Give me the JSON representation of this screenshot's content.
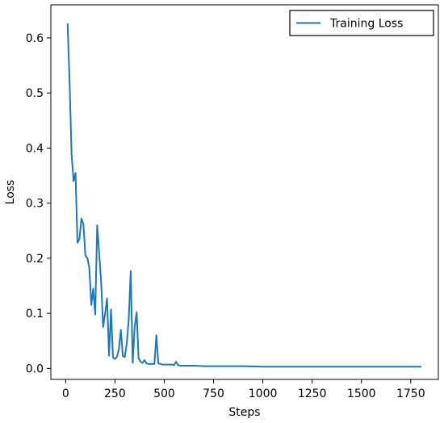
{
  "chart_data": {
    "type": "line",
    "title": "",
    "xlabel": "Steps",
    "ylabel": "Loss",
    "xlim": [
      -75,
      1890
    ],
    "ylim": [
      -0.02,
      0.66
    ],
    "xticks": [
      0,
      250,
      500,
      750,
      1000,
      1250,
      1500,
      1750
    ],
    "xtick_labels": [
      "0",
      "250",
      "500",
      "750",
      "1000",
      "1250",
      "1500",
      "1750"
    ],
    "yticks": [
      0.0,
      0.1,
      0.2,
      0.3,
      0.4,
      0.5,
      0.6
    ],
    "ytick_labels": [
      "0.0",
      "0.1",
      "0.2",
      "0.3",
      "0.4",
      "0.5",
      "0.6"
    ],
    "grid": false,
    "legend": {
      "position": "top-right"
    },
    "series": [
      {
        "name": "Training Loss",
        "color": "#1f77b4",
        "x": [
          10,
          20,
          30,
          40,
          50,
          60,
          70,
          80,
          90,
          100,
          110,
          120,
          130,
          140,
          150,
          160,
          170,
          180,
          190,
          200,
          210,
          220,
          230,
          240,
          250,
          260,
          270,
          280,
          290,
          300,
          310,
          320,
          330,
          340,
          350,
          360,
          370,
          380,
          390,
          400,
          410,
          420,
          430,
          440,
          450,
          460,
          470,
          480,
          490,
          500,
          510,
          520,
          530,
          540,
          550,
          560,
          570,
          580,
          600,
          650,
          700,
          750,
          800,
          900,
          1000,
          1100,
          1200,
          1300,
          1400,
          1500,
          1600,
          1700,
          1800
        ],
        "y": [
          0.625,
          0.52,
          0.39,
          0.34,
          0.355,
          0.228,
          0.235,
          0.272,
          0.262,
          0.205,
          0.2,
          0.183,
          0.115,
          0.145,
          0.098,
          0.26,
          0.21,
          0.157,
          0.075,
          0.1,
          0.127,
          0.023,
          0.107,
          0.02,
          0.017,
          0.021,
          0.035,
          0.07,
          0.022,
          0.021,
          0.045,
          0.09,
          0.177,
          0.01,
          0.075,
          0.102,
          0.018,
          0.012,
          0.01,
          0.015,
          0.009,
          0.008,
          0.008,
          0.008,
          0.008,
          0.06,
          0.009,
          0.008,
          0.007,
          0.007,
          0.007,
          0.007,
          0.007,
          0.007,
          0.006,
          0.012,
          0.006,
          0.005,
          0.005,
          0.005,
          0.004,
          0.004,
          0.004,
          0.004,
          0.003,
          0.003,
          0.003,
          0.003,
          0.003,
          0.003,
          0.003,
          0.003,
          0.003
        ]
      }
    ]
  }
}
